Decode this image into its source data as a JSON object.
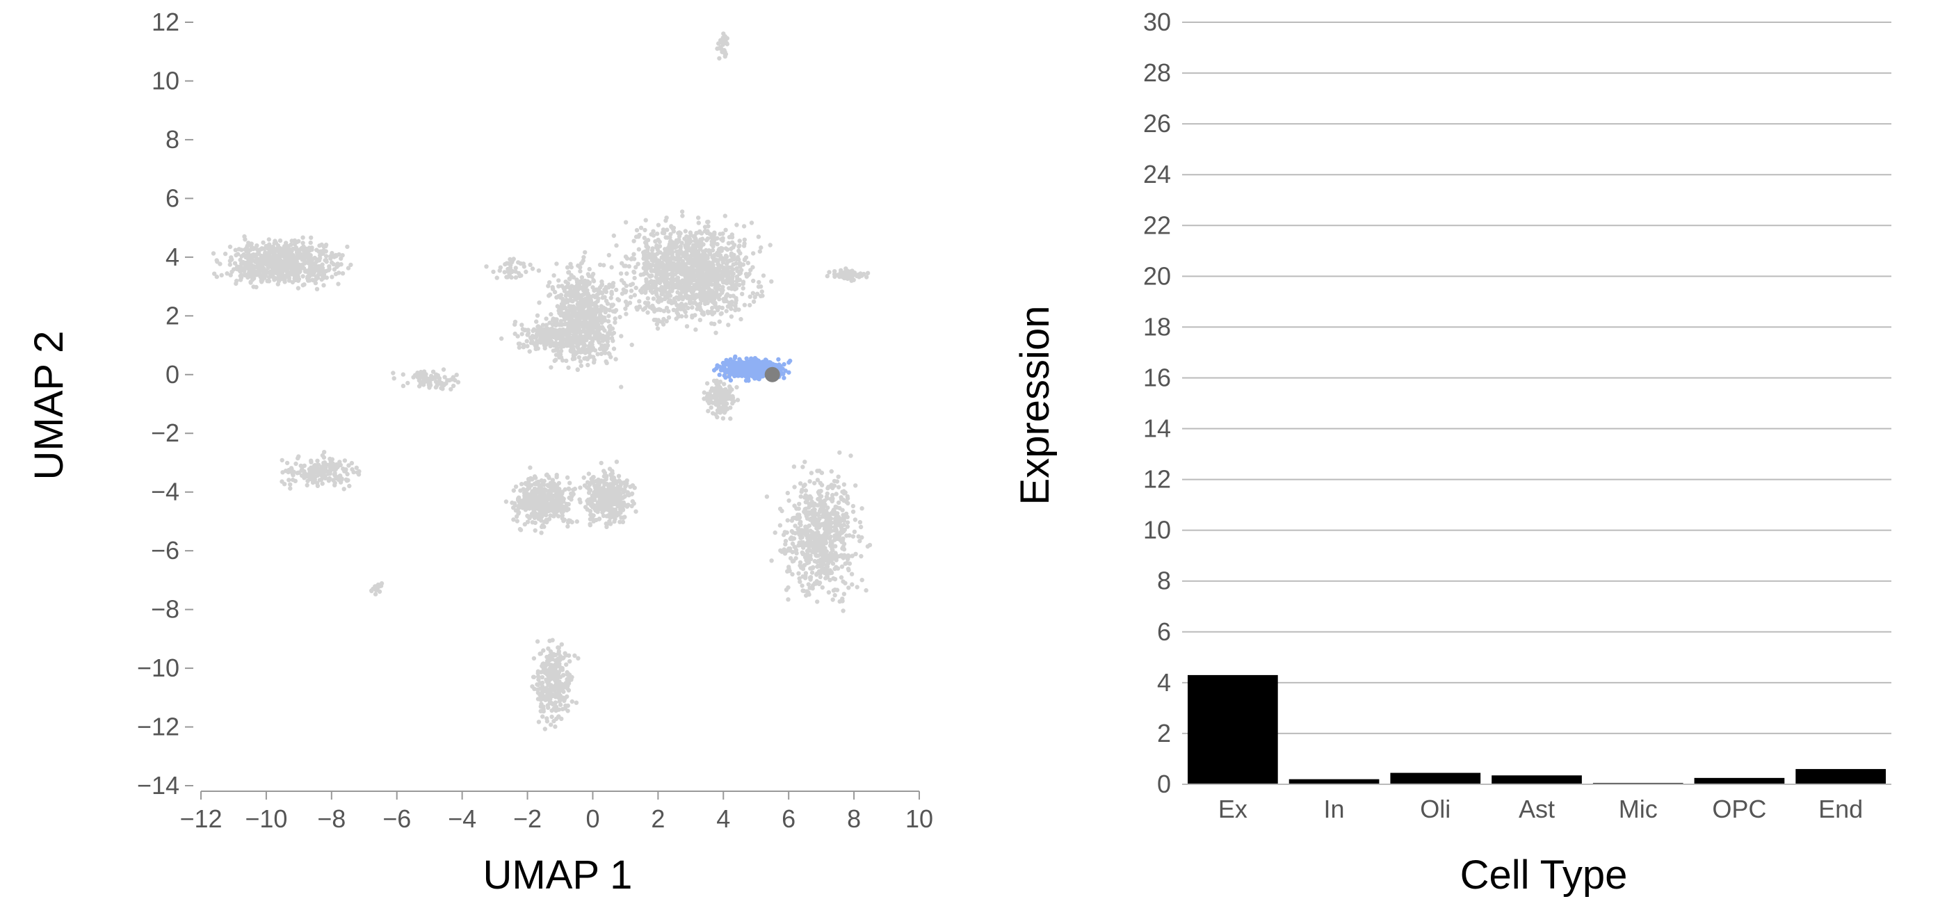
{
  "chart_data": [
    {
      "type": "scatter",
      "xlabel": "UMAP 1",
      "ylabel": "UMAP 2",
      "xlim": [
        -12,
        10
      ],
      "ylim": [
        -14,
        12
      ],
      "xticks": [
        -12,
        -10,
        -8,
        -6,
        -4,
        -2,
        0,
        2,
        4,
        6,
        8,
        10
      ],
      "yticks": [
        12,
        10,
        8,
        6,
        4,
        2,
        0,
        -2,
        -4,
        -6,
        -8,
        -10,
        -12,
        -14
      ],
      "grid": false,
      "colors": {
        "background_points": "#d3d3d3",
        "highlight_points": "#8fb0f4",
        "selected_point": "#808080"
      },
      "clusters": [
        {
          "center": [
            -9.5,
            3.8
          ],
          "spread": [
            1.6,
            0.7
          ],
          "count": 700,
          "highlight": false
        },
        {
          "center": [
            -8.3,
            -3.3
          ],
          "spread": [
            1.1,
            0.45
          ],
          "count": 180,
          "highlight": false
        },
        {
          "center": [
            -5.0,
            -0.2
          ],
          "spread": [
            0.9,
            0.3
          ],
          "count": 80,
          "highlight": false
        },
        {
          "center": [
            -2.5,
            3.6
          ],
          "spread": [
            0.6,
            0.35
          ],
          "count": 40,
          "highlight": false
        },
        {
          "center": [
            -1.3,
            1.3
          ],
          "spread": [
            1.1,
            0.5
          ],
          "count": 200,
          "highlight": false
        },
        {
          "center": [
            -0.3,
            2.0
          ],
          "spread": [
            1.0,
            1.6
          ],
          "count": 700,
          "highlight": false
        },
        {
          "center": [
            3.0,
            3.5
          ],
          "spread": [
            1.8,
            1.5
          ],
          "count": 1200,
          "highlight": false
        },
        {
          "center": [
            3.9,
            -0.8
          ],
          "spread": [
            0.45,
            0.6
          ],
          "count": 140,
          "highlight": false
        },
        {
          "center": [
            4.0,
            11.2
          ],
          "spread": [
            0.15,
            0.4
          ],
          "count": 30,
          "highlight": false
        },
        {
          "center": [
            7.9,
            3.4
          ],
          "spread": [
            0.6,
            0.2
          ],
          "count": 60,
          "highlight": false
        },
        {
          "center": [
            -1.5,
            -4.3
          ],
          "spread": [
            0.9,
            0.8
          ],
          "count": 400,
          "highlight": false
        },
        {
          "center": [
            0.5,
            -4.2
          ],
          "spread": [
            0.7,
            0.9
          ],
          "count": 350,
          "highlight": false
        },
        {
          "center": [
            7.0,
            -5.5
          ],
          "spread": [
            1.1,
            1.9
          ],
          "count": 650,
          "highlight": false
        },
        {
          "center": [
            -6.6,
            -7.2
          ],
          "spread": [
            0.15,
            0.25
          ],
          "count": 15,
          "highlight": false
        },
        {
          "center": [
            -1.2,
            -10.5
          ],
          "spread": [
            0.55,
            1.2
          ],
          "count": 280,
          "highlight": false
        },
        {
          "center": [
            4.9,
            0.2
          ],
          "spread": [
            0.9,
            0.3
          ],
          "count": 500,
          "highlight": true
        }
      ],
      "selected_point": [
        5.5,
        0.0
      ]
    },
    {
      "type": "bar",
      "xlabel": "Cell Type",
      "ylabel": "Expression",
      "categories": [
        "Ex",
        "In",
        "Oli",
        "Ast",
        "Mic",
        "OPC",
        "End"
      ],
      "values": [
        4.3,
        0.2,
        0.45,
        0.35,
        0.05,
        0.25,
        0.6
      ],
      "ylim": [
        0,
        30
      ],
      "yticks": [
        0,
        2,
        4,
        6,
        8,
        10,
        12,
        14,
        16,
        18,
        20,
        22,
        24,
        26,
        28,
        30
      ],
      "grid": true,
      "colors": {
        "bar": "#000000",
        "grid": "#bbbbbb"
      }
    }
  ]
}
